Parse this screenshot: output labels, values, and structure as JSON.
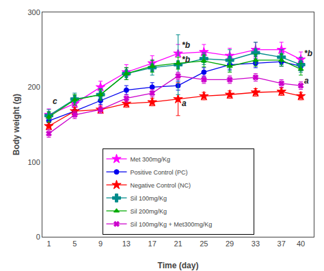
{
  "chart_data": {
    "type": "line",
    "x": [
      1,
      5,
      9,
      13,
      17,
      21,
      25,
      29,
      33,
      37,
      40
    ],
    "series": [
      {
        "name": "Met 300mg/Kg",
        "color": "#ff00ff",
        "marker": "star",
        "line_style": "solid",
        "values": [
          163,
          178,
          200,
          220,
          232,
          245,
          247,
          242,
          250,
          250,
          237
        ],
        "yerr": [
          8,
          8,
          8,
          10,
          10,
          12,
          10,
          10,
          10,
          10,
          10
        ]
      },
      {
        "name": "Positive Control (PC)",
        "color": "#0000ee",
        "marker": "circle",
        "line_style": "solid",
        "values": [
          155,
          168,
          182,
          196,
          200,
          202,
          220,
          230,
          232,
          234,
          228
        ],
        "yerr": [
          5,
          5,
          5,
          6,
          6,
          6,
          6,
          6,
          6,
          6,
          6
        ]
      },
      {
        "name": "Negative Control (NC)",
        "color": "#ff0000",
        "marker": "star",
        "line_style": "solid",
        "values": [
          148,
          168,
          170,
          178,
          180,
          184,
          188,
          190,
          193,
          194,
          188
        ],
        "yerr": [
          5,
          5,
          5,
          5,
          5,
          22,
          5,
          5,
          5,
          5,
          5
        ]
      },
      {
        "name": "Sil 100mg/Kg",
        "color": "#008b8b",
        "marker": "cross",
        "line_style": "solid",
        "values": [
          162,
          184,
          190,
          218,
          226,
          230,
          238,
          236,
          246,
          240,
          230
        ],
        "yerr": [
          8,
          8,
          8,
          8,
          10,
          40,
          8,
          14,
          14,
          10,
          10
        ]
      },
      {
        "name": "Sil 200mg/Kg",
        "color": "#00aa00",
        "marker": "triangle-up",
        "line_style": "solid",
        "values": [
          160,
          183,
          190,
          218,
          228,
          232,
          235,
          228,
          236,
          236,
          224
        ],
        "yerr": [
          7,
          7,
          7,
          8,
          8,
          8,
          8,
          8,
          8,
          8,
          8
        ]
      },
      {
        "name": "Sil 100mg/Kg + Met300mg/Kg",
        "color": "#cc00cc",
        "marker": "x",
        "line_style": "solid",
        "values": [
          138,
          163,
          170,
          185,
          192,
          215,
          210,
          210,
          213,
          205,
          202
        ],
        "yerr": [
          5,
          5,
          5,
          5,
          5,
          5,
          5,
          5,
          5,
          5,
          5
        ]
      }
    ],
    "annotations": [
      {
        "text": "c",
        "x": 1.4,
        "y": 173
      },
      {
        "text": "*b",
        "x": 21.4,
        "y": 248
      },
      {
        "text": "*b",
        "x": 21.4,
        "y": 229
      },
      {
        "text": "a",
        "x": 21.4,
        "y": 170
      },
      {
        "text": "*b",
        "x": 40.3,
        "y": 237
      },
      {
        "text": "a",
        "x": 40.3,
        "y": 200
      }
    ],
    "xlabel": "Time (day)",
    "ylabel": "Body weight (g)",
    "xlim": [
      0,
      42
    ],
    "ylim": [
      0,
      300
    ],
    "xticks": [
      1,
      5,
      9,
      13,
      17,
      21,
      25,
      29,
      33,
      37,
      40
    ],
    "yticks": [
      0,
      100,
      200,
      300
    ],
    "grid": false,
    "legend": "bottom"
  }
}
